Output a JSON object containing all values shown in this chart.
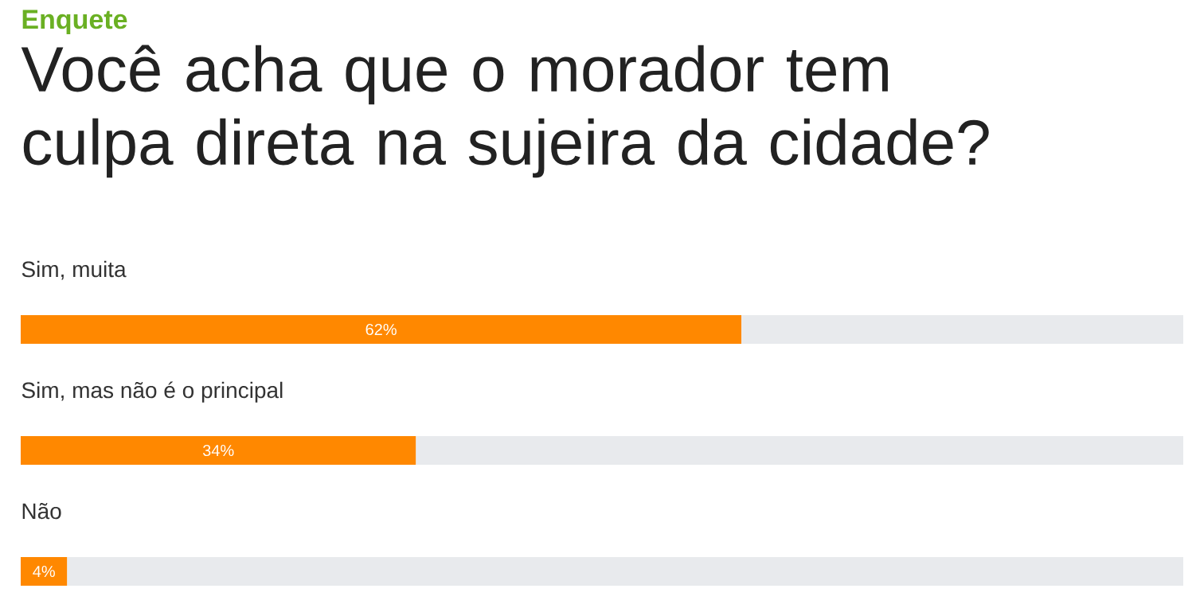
{
  "chart_data": {
    "type": "bar",
    "orientation": "horizontal",
    "stacked": true,
    "subtitle": "Enquete",
    "title": "Você acha que o morador tem culpa direta na sujeira da cidade?",
    "categories": [
      "Sim, muita",
      "Sim, mas não é o principal",
      "Não"
    ],
    "series": [
      {
        "color": "#ff8800",
        "values": [
          62,
          34,
          4
        ],
        "value_labels": [
          "62%",
          "34%",
          "4%"
        ]
      },
      {
        "color": "#e8eaed",
        "values": [
          38,
          66,
          96
        ]
      }
    ],
    "xlim": [
      0,
      100
    ]
  }
}
